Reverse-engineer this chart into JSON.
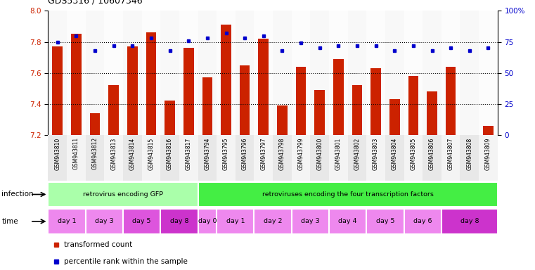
{
  "title": "GDS5316 / 10607346",
  "samples": [
    "GSM943810",
    "GSM943811",
    "GSM943812",
    "GSM943813",
    "GSM943814",
    "GSM943815",
    "GSM943816",
    "GSM943817",
    "GSM943794",
    "GSM943795",
    "GSM943796",
    "GSM943797",
    "GSM943798",
    "GSM943799",
    "GSM943800",
    "GSM943801",
    "GSM943802",
    "GSM943803",
    "GSM943804",
    "GSM943805",
    "GSM943806",
    "GSM943807",
    "GSM943808",
    "GSM943809"
  ],
  "bar_values": [
    7.77,
    7.85,
    7.34,
    7.52,
    7.77,
    7.86,
    7.42,
    7.76,
    7.57,
    7.91,
    7.65,
    7.82,
    7.39,
    7.64,
    7.49,
    7.69,
    7.52,
    7.63,
    7.43,
    7.58,
    7.48,
    7.64,
    7.2,
    7.26
  ],
  "percentile_values": [
    75,
    80,
    68,
    72,
    72,
    78,
    68,
    76,
    78,
    82,
    78,
    80,
    68,
    74,
    70,
    72,
    72,
    72,
    68,
    72,
    68,
    70,
    68,
    70
  ],
  "ylim_left": [
    7.2,
    8.0
  ],
  "ylim_right": [
    0,
    100
  ],
  "yticks_left": [
    7.2,
    7.4,
    7.6,
    7.8,
    8.0
  ],
  "yticks_right": [
    0,
    25,
    50,
    75,
    100
  ],
  "ytick_right_labels": [
    "0",
    "25",
    "50",
    "75",
    "100%"
  ],
  "bar_color": "#cc2200",
  "dot_color": "#0000cc",
  "grid_values": [
    7.4,
    7.6,
    7.8
  ],
  "infection_groups": [
    {
      "label": "retrovirus encoding GFP",
      "start": 0,
      "end": 7,
      "color": "#aaffaa"
    },
    {
      "label": "retroviruses encoding the four transcription factors",
      "start": 8,
      "end": 23,
      "color": "#44ee44"
    }
  ],
  "time_groups": [
    {
      "label": "day 1",
      "start": 0,
      "end": 1,
      "color": "#ee88ee"
    },
    {
      "label": "day 3",
      "start": 2,
      "end": 3,
      "color": "#ee88ee"
    },
    {
      "label": "day 5",
      "start": 4,
      "end": 5,
      "color": "#dd55dd"
    },
    {
      "label": "day 8",
      "start": 6,
      "end": 7,
      "color": "#cc33cc"
    },
    {
      "label": "day 0",
      "start": 8,
      "end": 8,
      "color": "#ee88ee"
    },
    {
      "label": "day 1",
      "start": 9,
      "end": 10,
      "color": "#ee88ee"
    },
    {
      "label": "day 2",
      "start": 11,
      "end": 12,
      "color": "#ee88ee"
    },
    {
      "label": "day 3",
      "start": 13,
      "end": 14,
      "color": "#ee88ee"
    },
    {
      "label": "day 4",
      "start": 15,
      "end": 16,
      "color": "#ee88ee"
    },
    {
      "label": "day 5",
      "start": 17,
      "end": 18,
      "color": "#ee88ee"
    },
    {
      "label": "day 6",
      "start": 19,
      "end": 20,
      "color": "#ee88ee"
    },
    {
      "label": "day 8",
      "start": 21,
      "end": 23,
      "color": "#cc33cc"
    }
  ],
  "legend_items": [
    {
      "label": "transformed count",
      "color": "#cc2200"
    },
    {
      "label": "percentile rank within the sample",
      "color": "#0000cc"
    }
  ],
  "bg_color": "#ffffff",
  "tick_label_color_left": "#cc2200",
  "tick_label_color_right": "#0000cc"
}
